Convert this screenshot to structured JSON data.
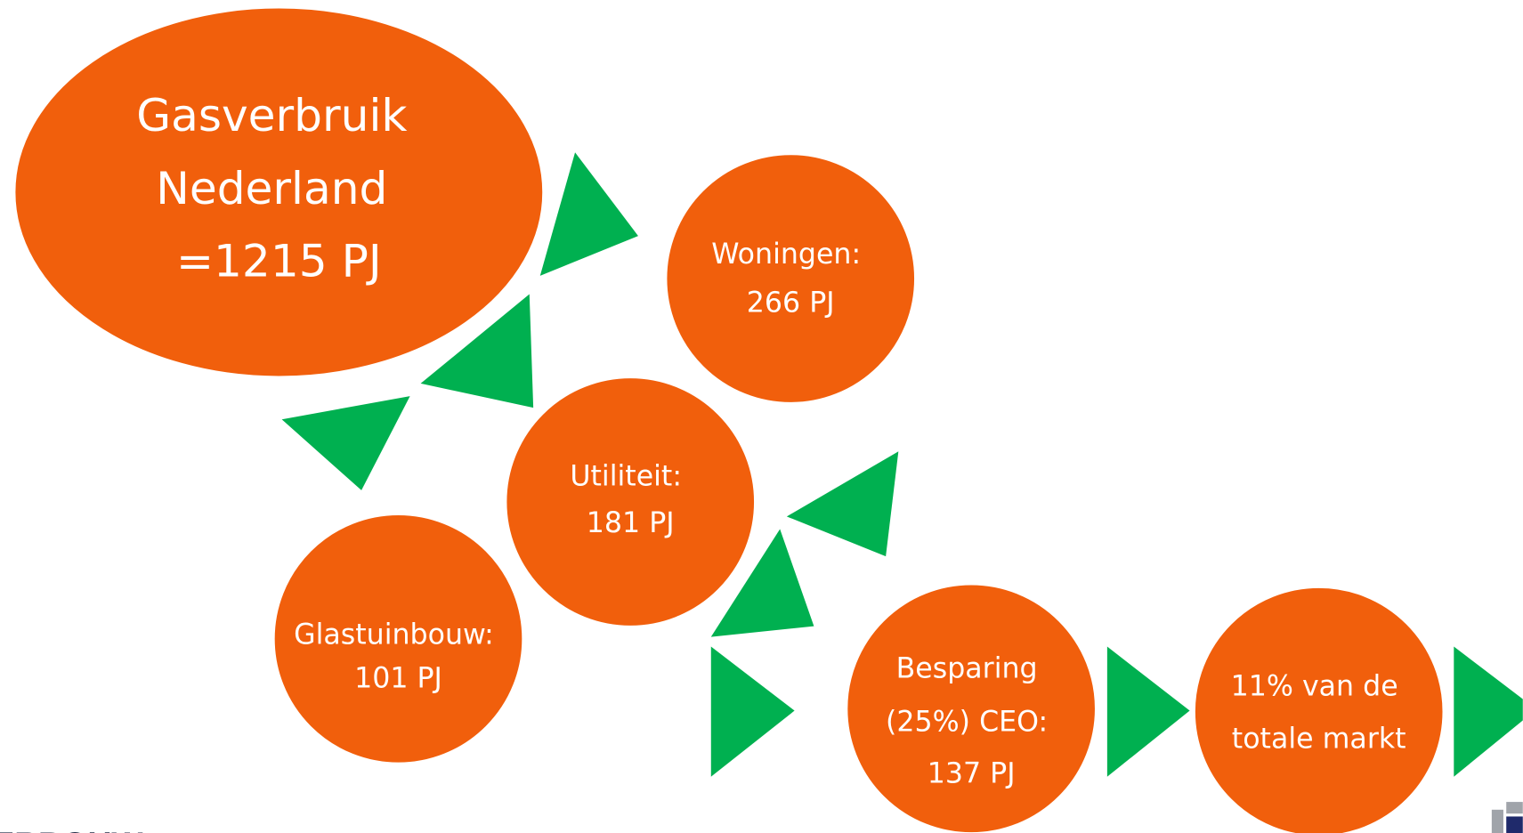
{
  "nodes": [
    {
      "lines": [
        "Gasverbruik",
        "Nederland",
        "=1215 PJ"
      ]
    },
    {
      "lines": [
        "Woningen:",
        "266 PJ"
      ]
    },
    {
      "lines": [
        "Utiliteit:",
        "181 PJ"
      ]
    },
    {
      "lines": [
        "Glastuinbouw:",
        "101 PJ"
      ]
    },
    {
      "lines": [
        "Besparing",
        "(25%) CEO:",
        "137 PJ"
      ]
    },
    {
      "lines": [
        "11% van de",
        "totale markt"
      ]
    }
  ],
  "footer": {
    "logo_text": "ERBOUW"
  }
}
